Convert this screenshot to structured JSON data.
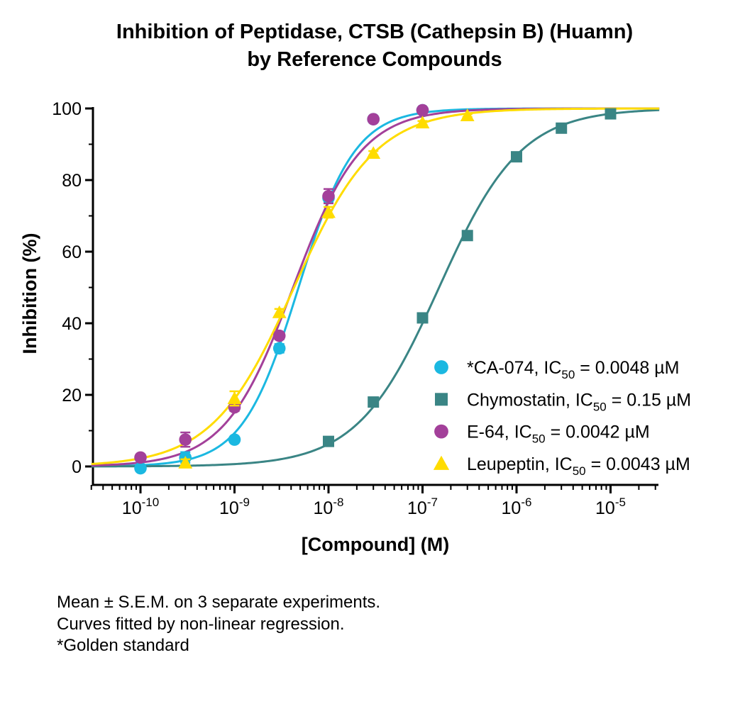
{
  "chart_data": {
    "type": "scatter",
    "title": [
      "Inhibition of Peptidase, CTSB (Cathepsin B) (Huamn)",
      "by Reference Compounds"
    ],
    "xlabel": "[Compound] (M)",
    "ylabel": "Inhibition (%)",
    "xscale": "log",
    "xlim": [
      3e-11,
      3.3e-05
    ],
    "ylim": [
      -5,
      100
    ],
    "x_ticks": [
      1e-10,
      1e-09,
      1e-08,
      1e-07,
      1e-06,
      1e-05
    ],
    "x_tick_labels": [
      {
        "base": "10",
        "exp": "-10"
      },
      {
        "base": "10",
        "exp": "-9"
      },
      {
        "base": "10",
        "exp": "-8"
      },
      {
        "base": "10",
        "exp": "-7"
      },
      {
        "base": "10",
        "exp": "-6"
      },
      {
        "base": "10",
        "exp": "-5"
      }
    ],
    "y_ticks": [
      0,
      20,
      40,
      60,
      80,
      100
    ],
    "y_tick_labels": [
      "0",
      "20",
      "40",
      "60",
      "80",
      "100"
    ],
    "legend_position": "bottom-right",
    "series": [
      {
        "name": "*CA-074",
        "ic50_label": "IC",
        "ic50_sub": "50",
        "ic50_value": " = 0.0048  µM",
        "color": "#1bb8e1",
        "marker": "circle",
        "hill_slope": 1.45,
        "ic50_M": 4.8e-09,
        "x": [
          1e-10,
          3e-10,
          1e-09,
          3e-09,
          1e-08,
          3e-08,
          1e-07
        ],
        "y": [
          -0.5,
          2.5,
          7.5,
          33,
          75,
          97,
          99.5
        ],
        "err": [
          0.5,
          1.5,
          0.8,
          1.2,
          1.2,
          0.6,
          0.4
        ]
      },
      {
        "name": "Chymostatin",
        "ic50_label": "IC",
        "ic50_sub": "50",
        "ic50_value": " = 0.15 µM",
        "color": "#3a8585",
        "marker": "square",
        "hill_slope": 1.0,
        "ic50_M": 1.5e-07,
        "x": [
          1e-08,
          3e-08,
          1e-07,
          3e-07,
          1e-06,
          3e-06,
          1e-05
        ],
        "y": [
          7,
          18,
          41.5,
          64.5,
          86.5,
          94.5,
          98.5
        ],
        "err": [
          0.4,
          0.4,
          0.6,
          1.2,
          0.6,
          0.4,
          0.4
        ]
      },
      {
        "name": "E-64",
        "ic50_label": "IC",
        "ic50_sub": "50",
        "ic50_value": " = 0.0042  µM",
        "color": "#a3409a",
        "marker": "circle",
        "hill_slope": 1.2,
        "ic50_M": 4.2e-09,
        "x": [
          1e-10,
          3e-10,
          1e-09,
          3e-09,
          1e-08,
          3e-08,
          1e-07
        ],
        "y": [
          2.5,
          7.5,
          16.5,
          36.5,
          75.5,
          97,
          99.5
        ],
        "err": [
          0.6,
          2.0,
          1.0,
          1.0,
          2.0,
          0.6,
          0.4
        ]
      },
      {
        "name": "Leupeptin",
        "ic50_label": "IC",
        "ic50_sub": "50",
        "ic50_value": " = 0.0043  µM",
        "color": "#ffdc00",
        "marker": "triangle",
        "hill_slope": 1.0,
        "ic50_M": 4.3e-09,
        "x": [
          3e-10,
          1e-09,
          3e-09,
          1e-08,
          3e-08,
          1e-07,
          3e-07
        ],
        "y": [
          1,
          19,
          43,
          71,
          87.5,
          96,
          98
        ],
        "err": [
          1.0,
          2.0,
          1.0,
          1.5,
          0.6,
          0.5,
          0.4
        ]
      }
    ]
  },
  "footnotes": [
    "Mean ± S.E.M. on 3 separate experiments.",
    "Curves fitted by non-linear regression.",
    "*Golden standard"
  ]
}
